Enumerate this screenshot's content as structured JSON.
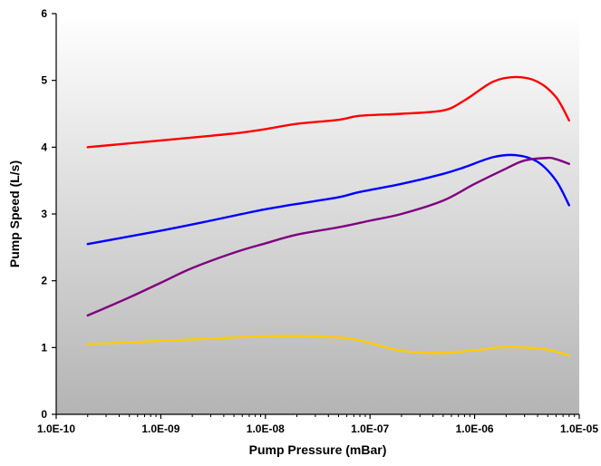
{
  "chart_data": {
    "type": "line",
    "title": "",
    "xlabel": "Pump Pressure (mBar)",
    "ylabel": "Pump Speed (L/s)",
    "xscale": "log",
    "xlim": [
      1e-10,
      1e-05
    ],
    "ylim": [
      0,
      6
    ],
    "x_ticks": [
      1e-10,
      1e-09,
      1e-08,
      1e-07,
      1e-06,
      1e-05
    ],
    "x_tick_labels": [
      "1.0E-10",
      "1.0E-09",
      "1.0E-08",
      "1.0E-07",
      "1.0E-06",
      "1.0E-05"
    ],
    "y_ticks": [
      0,
      1,
      2,
      3,
      4,
      5,
      6
    ],
    "y_tick_labels": [
      "0",
      "1",
      "2",
      "3",
      "4",
      "5",
      "6"
    ],
    "grid": false,
    "legend": "none",
    "background": "gradient white to grey",
    "series": [
      {
        "color": "#ff0000",
        "x": [
          2e-10,
          1e-09,
          3e-09,
          6e-09,
          1e-08,
          2e-08,
          5e-08,
          8e-08,
          2e-07,
          5e-07,
          8e-07,
          1.5e-06,
          2.5e-06,
          4e-06,
          6e-06,
          8e-06
        ],
        "y": [
          4.0,
          4.1,
          4.17,
          4.22,
          4.27,
          4.35,
          4.41,
          4.47,
          4.5,
          4.55,
          4.7,
          4.98,
          5.05,
          4.98,
          4.75,
          4.4
        ]
      },
      {
        "color": "#0000ff",
        "x": [
          2e-10,
          1e-09,
          3e-09,
          6e-09,
          1e-08,
          2e-08,
          5e-08,
          8e-08,
          2e-07,
          5e-07,
          8e-07,
          1.5e-06,
          2.5e-06,
          4e-06,
          6e-06,
          8e-06
        ],
        "y": [
          2.55,
          2.75,
          2.9,
          3.0,
          3.07,
          3.15,
          3.25,
          3.33,
          3.45,
          3.6,
          3.7,
          3.85,
          3.88,
          3.78,
          3.5,
          3.13
        ]
      },
      {
        "color": "#800080",
        "x": [
          2e-10,
          5e-10,
          1e-09,
          2e-09,
          5e-09,
          1e-08,
          2e-08,
          5e-08,
          1e-07,
          2e-07,
          5e-07,
          1e-06,
          2e-06,
          3e-06,
          5e-06,
          6e-06,
          8e-06
        ],
        "y": [
          1.48,
          1.75,
          1.97,
          2.19,
          2.42,
          2.56,
          2.69,
          2.8,
          2.9,
          3.0,
          3.2,
          3.45,
          3.68,
          3.8,
          3.84,
          3.82,
          3.75
        ]
      },
      {
        "color": "#ffcc00",
        "x": [
          2e-10,
          1e-09,
          5e-09,
          1e-08,
          3e-08,
          6e-08,
          1e-07,
          2e-07,
          5e-07,
          1e-06,
          2e-06,
          3e-06,
          5e-06,
          8e-06
        ],
        "y": [
          1.05,
          1.1,
          1.15,
          1.17,
          1.17,
          1.14,
          1.07,
          0.95,
          0.92,
          0.96,
          1.01,
          1.0,
          0.97,
          0.88
        ]
      }
    ]
  }
}
